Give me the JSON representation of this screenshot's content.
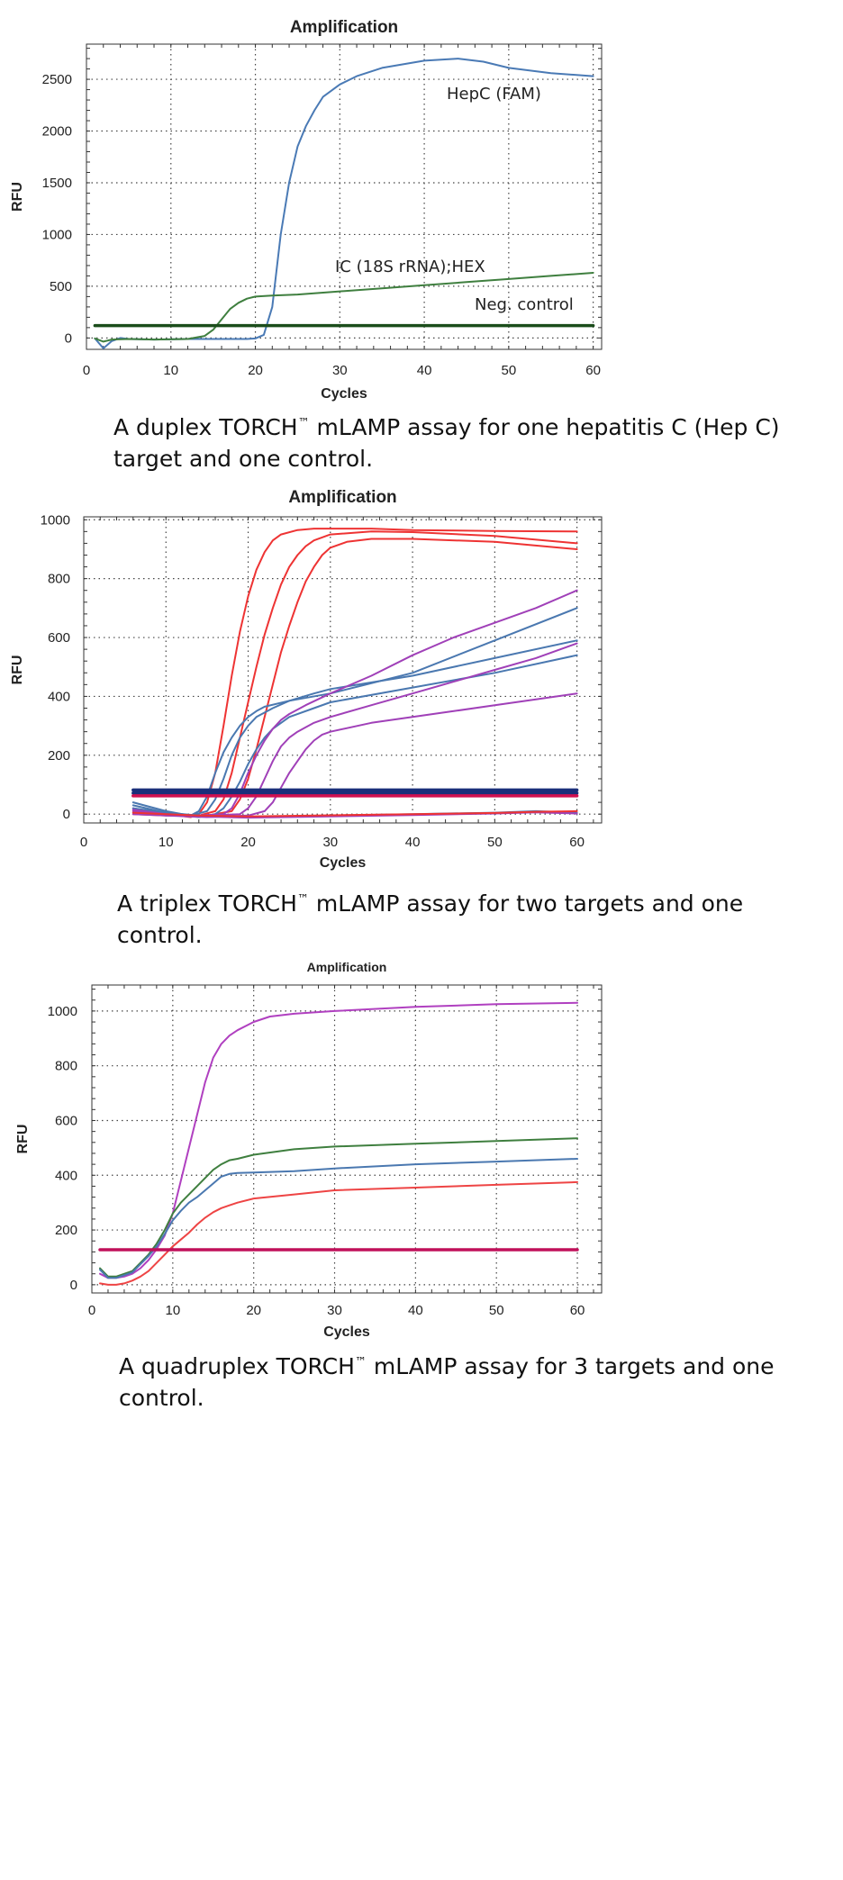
{
  "chart_data": [
    {
      "type": "line",
      "title": "Amplification",
      "xlabel": "Cycles",
      "ylabel": "RFU",
      "xlim": [
        0,
        61
      ],
      "ylim": [
        -110,
        2840
      ],
      "xticks": [
        0,
        10,
        20,
        30,
        40,
        50,
        60
      ],
      "yticks": [
        0,
        500,
        1000,
        1500,
        2000,
        2500
      ],
      "grid": true,
      "series": [
        {
          "name": "HepC (FAM)",
          "color": "#4a7ab5",
          "x": [
            1,
            2,
            3,
            4,
            5,
            8,
            12,
            15,
            17,
            19,
            20,
            21,
            22,
            23,
            24,
            25,
            26,
            27,
            28,
            30,
            32,
            35,
            40,
            44,
            47,
            50,
            55,
            60
          ],
          "y": [
            -5,
            -100,
            -30,
            0,
            -10,
            -15,
            -10,
            -10,
            -10,
            -10,
            -5,
            30,
            300,
            1000,
            1500,
            1850,
            2050,
            2200,
            2330,
            2450,
            2530,
            2610,
            2680,
            2700,
            2670,
            2610,
            2560,
            2530
          ]
        },
        {
          "name": "IC (18S rRNA);HEX",
          "color": "#3f7f3f",
          "x": [
            1,
            2,
            3,
            5,
            8,
            12,
            14,
            15,
            16,
            17,
            18,
            19,
            20,
            22,
            25,
            30,
            35,
            40,
            45,
            50,
            55,
            60
          ],
          "y": [
            -5,
            -35,
            -15,
            -10,
            -15,
            -10,
            20,
            80,
            180,
            280,
            340,
            380,
            400,
            410,
            420,
            450,
            480,
            510,
            540,
            570,
            600,
            630
          ]
        },
        {
          "name": "Neg. control",
          "color": "#1b4d1b",
          "x": [
            1,
            60
          ],
          "y": [
            120,
            120
          ]
        }
      ]
    },
    {
      "type": "line",
      "title": "Amplification",
      "xlabel": "Cycles",
      "ylabel": "RFU",
      "xlim": [
        0,
        63
      ],
      "ylim": [
        -30,
        1010
      ],
      "xticks": [
        0,
        10,
        20,
        30,
        40,
        50,
        60
      ],
      "yticks": [
        0,
        200,
        400,
        600,
        800,
        1000
      ],
      "grid": true,
      "series": [
        {
          "color": "#ee3333",
          "x": [
            6,
            10,
            13,
            14,
            15,
            16,
            17,
            18,
            19,
            20,
            21,
            22,
            23,
            24,
            26,
            28,
            30,
            35,
            40,
            50,
            60
          ],
          "y": [
            10,
            0,
            -10,
            0,
            40,
            140,
            300,
            470,
            620,
            740,
            830,
            890,
            930,
            950,
            965,
            970,
            970,
            970,
            965,
            962,
            960
          ]
        },
        {
          "color": "#ee3333",
          "x": [
            6,
            10,
            14,
            16,
            17,
            18,
            19,
            20,
            21,
            22,
            23,
            24,
            25,
            26,
            27,
            28,
            30,
            35,
            40,
            50,
            60
          ],
          "y": [
            5,
            0,
            -5,
            10,
            50,
            140,
            260,
            380,
            500,
            610,
            700,
            780,
            840,
            880,
            910,
            930,
            950,
            960,
            958,
            945,
            920
          ]
        },
        {
          "color": "#ee3333",
          "x": [
            6,
            10,
            15,
            18,
            19,
            20,
            21,
            22,
            23,
            24,
            25,
            26,
            27,
            28,
            29,
            30,
            32,
            35,
            40,
            50,
            60
          ],
          "y": [
            0,
            -5,
            -5,
            10,
            50,
            120,
            220,
            330,
            440,
            550,
            640,
            720,
            790,
            840,
            880,
            905,
            925,
            935,
            935,
            925,
            900
          ]
        },
        {
          "color": "#4a78b0",
          "x": [
            6,
            8,
            10,
            12,
            13,
            14,
            15,
            16,
            17,
            18,
            19,
            20,
            21,
            22,
            25,
            30,
            40,
            50,
            60
          ],
          "y": [
            40,
            25,
            10,
            0,
            -5,
            10,
            60,
            140,
            210,
            260,
            300,
            330,
            350,
            365,
            385,
            410,
            480,
            590,
            700
          ]
        },
        {
          "color": "#4a78b0",
          "x": [
            6,
            10,
            13,
            15,
            16,
            17,
            18,
            19,
            20,
            21,
            22,
            23,
            25,
            28,
            30,
            40,
            50,
            60
          ],
          "y": [
            30,
            5,
            -5,
            10,
            50,
            120,
            200,
            260,
            300,
            330,
            345,
            360,
            385,
            410,
            425,
            470,
            530,
            590
          ]
        },
        {
          "color": "#4a78b0",
          "x": [
            6,
            10,
            14,
            16,
            17,
            18,
            19,
            20,
            21,
            22,
            23,
            25,
            28,
            30,
            40,
            50,
            60
          ],
          "y": [
            20,
            0,
            -10,
            0,
            20,
            60,
            110,
            170,
            220,
            260,
            290,
            330,
            360,
            380,
            430,
            480,
            540
          ]
        },
        {
          "color": "#a040b8",
          "x": [
            6,
            10,
            14,
            17,
            18,
            19,
            20,
            21,
            22,
            23,
            24,
            25,
            27,
            30,
            35,
            40,
            45,
            50,
            55,
            60
          ],
          "y": [
            20,
            0,
            -5,
            0,
            20,
            70,
            140,
            200,
            250,
            290,
            320,
            340,
            370,
            410,
            470,
            540,
            600,
            650,
            700,
            760
          ]
        },
        {
          "color": "#a040b8",
          "x": [
            6,
            10,
            15,
            19,
            20,
            21,
            22,
            23,
            24,
            25,
            26,
            27,
            28,
            30,
            35,
            40,
            45,
            50,
            55,
            60
          ],
          "y": [
            10,
            -5,
            -5,
            0,
            20,
            60,
            120,
            180,
            230,
            260,
            280,
            295,
            310,
            330,
            370,
            410,
            450,
            490,
            530,
            580
          ]
        },
        {
          "color": "#a040b8",
          "x": [
            6,
            10,
            15,
            20,
            22,
            23,
            24,
            25,
            26,
            27,
            28,
            29,
            30,
            35,
            40,
            45,
            50,
            55,
            60
          ],
          "y": [
            0,
            -5,
            -10,
            -5,
            10,
            40,
            90,
            140,
            180,
            220,
            250,
            270,
            280,
            310,
            330,
            350,
            370,
            390,
            410
          ]
        },
        {
          "color": "#1a2f7a",
          "x": [
            6,
            60
          ],
          "y": [
            82,
            82
          ]
        },
        {
          "color": "#1a2f7a",
          "x": [
            6,
            60
          ],
          "y": [
            72,
            72
          ]
        },
        {
          "color": "#d01050",
          "x": [
            6,
            60
          ],
          "y": [
            62,
            62
          ]
        },
        {
          "color": "#4a78b0",
          "x": [
            6,
            10,
            14,
            20,
            30,
            40,
            50,
            55,
            60
          ],
          "y": [
            20,
            5,
            -5,
            -10,
            -5,
            0,
            5,
            10,
            5
          ]
        },
        {
          "color": "#a040b8",
          "x": [
            6,
            10,
            14,
            20,
            30,
            40,
            50,
            55,
            60
          ],
          "y": [
            15,
            0,
            -8,
            -12,
            -8,
            -3,
            2,
            6,
            2
          ]
        },
        {
          "color": "#ee3333",
          "x": [
            6,
            10,
            14,
            20,
            30,
            40,
            50,
            55,
            60
          ],
          "y": [
            5,
            0,
            -5,
            -8,
            -4,
            0,
            4,
            8,
            10
          ]
        }
      ]
    },
    {
      "type": "line",
      "title": "Amplification",
      "xlabel": "Cycles",
      "ylabel": "RFU",
      "xlim": [
        0,
        63
      ],
      "ylim": [
        -30,
        1095
      ],
      "xticks": [
        0,
        10,
        20,
        30,
        40,
        50,
        60
      ],
      "yticks": [
        0,
        200,
        400,
        600,
        800,
        1000
      ],
      "grid": true,
      "series": [
        {
          "color": "#b040c0",
          "x": [
            1,
            2,
            3,
            4,
            5,
            6,
            7,
            8,
            9,
            10,
            11,
            12,
            13,
            14,
            15,
            16,
            17,
            18,
            20,
            22,
            25,
            30,
            40,
            50,
            60
          ],
          "y": [
            40,
            25,
            25,
            30,
            40,
            60,
            90,
            130,
            180,
            260,
            380,
            500,
            620,
            740,
            830,
            880,
            910,
            930,
            960,
            980,
            990,
            1000,
            1015,
            1025,
            1030
          ]
        },
        {
          "color": "#3f7f3f",
          "x": [
            1,
            2,
            3,
            5,
            6,
            7,
            8,
            9,
            10,
            11,
            12,
            13,
            14,
            15,
            16,
            17,
            18,
            20,
            25,
            30,
            40,
            50,
            60
          ],
          "y": [
            60,
            30,
            30,
            50,
            80,
            110,
            150,
            200,
            260,
            300,
            330,
            360,
            390,
            420,
            440,
            455,
            460,
            475,
            495,
            505,
            515,
            525,
            535
          ]
        },
        {
          "color": "#4a78b0",
          "x": [
            1,
            2,
            3,
            5,
            6,
            7,
            8,
            9,
            10,
            11,
            12,
            13,
            14,
            15,
            16,
            17,
            18,
            20,
            25,
            30,
            40,
            50,
            60
          ],
          "y": [
            55,
            25,
            25,
            45,
            75,
            105,
            140,
            185,
            235,
            270,
            300,
            320,
            345,
            370,
            395,
            405,
            408,
            410,
            415,
            425,
            440,
            450,
            460
          ]
        },
        {
          "color": "#ee4444",
          "x": [
            1,
            2,
            3,
            4,
            5,
            6,
            7,
            8,
            9,
            10,
            11,
            12,
            13,
            14,
            15,
            16,
            17,
            18,
            20,
            25,
            30,
            40,
            50,
            60
          ],
          "y": [
            5,
            0,
            0,
            5,
            15,
            30,
            50,
            80,
            110,
            140,
            165,
            190,
            220,
            245,
            265,
            280,
            290,
            300,
            315,
            330,
            345,
            355,
            365,
            375
          ]
        },
        {
          "color": "#c0105a",
          "x": [
            1,
            60
          ],
          "y": [
            128,
            128
          ]
        }
      ]
    }
  ],
  "annotations": {
    "hepc": "HepC (FAM)",
    "ic": "IC (18S rRNA);HEX",
    "neg": "Neg. control"
  },
  "captions": {
    "c1_a": "A duplex TORCH",
    "c1_tm": "™",
    "c1_b": " mLAMP assay for one hepatitis C (Hep C)",
    "c1_line2": "target and one control.",
    "c2_a": "A triplex  TORCH",
    "c2_tm": "™",
    "c2_b": " mLAMP assay for two targets and one",
    "c2_line2": "control.",
    "c3_a": "A quadruplex  TORCH",
    "c3_tm": "™",
    "c3_b": " mLAMP assay for 3 targets and one",
    "c3_line2": "control."
  }
}
